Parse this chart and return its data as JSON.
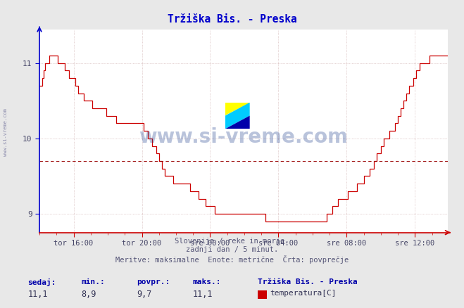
{
  "title": "Tržiška Bis. - Preska",
  "subtitle1": "Slovenija / reke in morje.",
  "subtitle2": "zadnji dan / 5 minut.",
  "subtitle3": "Meritve: maksimalne  Enote: metrične  Črta: povprečje",
  "xlabel_ticks": [
    "tor 16:00",
    "tor 20:00",
    "sre 00:00",
    "sre 04:00",
    "sre 08:00",
    "sre 12:00"
  ],
  "ytick_positions": [
    9.0,
    10.0,
    11.0
  ],
  "sedaj_label": "sedaj:",
  "min_label": "min.:",
  "povpr_label": "povpr.:",
  "maks_label": "maks.:",
  "sedaj_val": "11,1",
  "min_val": "8,9",
  "povpr_val": "9,7",
  "maks_val": "11,1",
  "station_label": "Tržiška Bis. - Preska",
  "series_label": "temperatura[C]",
  "line_color": "#cc0000",
  "avg_value": 9.7,
  "ylim": [
    8.75,
    11.45
  ],
  "xlim": [
    0,
    287
  ],
  "tick_positions": [
    24,
    72,
    120,
    168,
    216,
    264
  ],
  "watermark": "www.si-vreme.com",
  "temperature_data": [
    10.7,
    10.7,
    10.8,
    10.9,
    11.0,
    11.0,
    11.0,
    11.1,
    11.1,
    11.1,
    11.1,
    11.1,
    11.1,
    11.0,
    11.0,
    11.0,
    11.0,
    11.0,
    10.9,
    10.9,
    10.9,
    10.8,
    10.8,
    10.8,
    10.8,
    10.7,
    10.7,
    10.6,
    10.6,
    10.6,
    10.6,
    10.5,
    10.5,
    10.5,
    10.5,
    10.5,
    10.5,
    10.4,
    10.4,
    10.4,
    10.4,
    10.4,
    10.4,
    10.4,
    10.4,
    10.4,
    10.4,
    10.3,
    10.3,
    10.3,
    10.3,
    10.3,
    10.3,
    10.3,
    10.2,
    10.2,
    10.2,
    10.2,
    10.2,
    10.2,
    10.2,
    10.2,
    10.2,
    10.2,
    10.2,
    10.2,
    10.2,
    10.2,
    10.2,
    10.2,
    10.2,
    10.2,
    10.2,
    10.1,
    10.1,
    10.1,
    10.0,
    10.0,
    10.0,
    9.9,
    9.9,
    9.9,
    9.8,
    9.8,
    9.7,
    9.7,
    9.6,
    9.6,
    9.5,
    9.5,
    9.5,
    9.5,
    9.5,
    9.5,
    9.4,
    9.4,
    9.4,
    9.4,
    9.4,
    9.4,
    9.4,
    9.4,
    9.4,
    9.4,
    9.4,
    9.4,
    9.3,
    9.3,
    9.3,
    9.3,
    9.3,
    9.3,
    9.2,
    9.2,
    9.2,
    9.2,
    9.2,
    9.1,
    9.1,
    9.1,
    9.1,
    9.1,
    9.1,
    9.0,
    9.0,
    9.0,
    9.0,
    9.0,
    9.0,
    9.0,
    9.0,
    9.0,
    9.0,
    9.0,
    9.0,
    9.0,
    9.0,
    9.0,
    9.0,
    9.0,
    9.0,
    9.0,
    9.0,
    9.0,
    9.0,
    9.0,
    9.0,
    9.0,
    9.0,
    9.0,
    9.0,
    9.0,
    9.0,
    9.0,
    9.0,
    9.0,
    9.0,
    9.0,
    9.0,
    8.9,
    8.9,
    8.9,
    8.9,
    8.9,
    8.9,
    8.9,
    8.9,
    8.9,
    8.9,
    8.9,
    8.9,
    8.9,
    8.9,
    8.9,
    8.9,
    8.9,
    8.9,
    8.9,
    8.9,
    8.9,
    8.9,
    8.9,
    8.9,
    8.9,
    8.9,
    8.9,
    8.9,
    8.9,
    8.9,
    8.9,
    8.9,
    8.9,
    8.9,
    8.9,
    8.9,
    8.9,
    8.9,
    8.9,
    8.9,
    8.9,
    8.9,
    8.9,
    9.0,
    9.0,
    9.0,
    9.0,
    9.1,
    9.1,
    9.1,
    9.1,
    9.2,
    9.2,
    9.2,
    9.2,
    9.2,
    9.2,
    9.2,
    9.3,
    9.3,
    9.3,
    9.3,
    9.3,
    9.3,
    9.4,
    9.4,
    9.4,
    9.4,
    9.4,
    9.5,
    9.5,
    9.5,
    9.5,
    9.6,
    9.6,
    9.6,
    9.7,
    9.7,
    9.8,
    9.8,
    9.8,
    9.9,
    9.9,
    10.0,
    10.0,
    10.0,
    10.0,
    10.1,
    10.1,
    10.1,
    10.1,
    10.2,
    10.2,
    10.3,
    10.3,
    10.4,
    10.4,
    10.5,
    10.5,
    10.6,
    10.6,
    10.7,
    10.7,
    10.7,
    10.8,
    10.8,
    10.9,
    10.9,
    11.0,
    11.0,
    11.0,
    11.0,
    11.0,
    11.0,
    11.0,
    11.1,
    11.1,
    11.1,
    11.1,
    11.1,
    11.1,
    11.1,
    11.1,
    11.1,
    11.1,
    11.1,
    11.1,
    11.1,
    11.1
  ]
}
